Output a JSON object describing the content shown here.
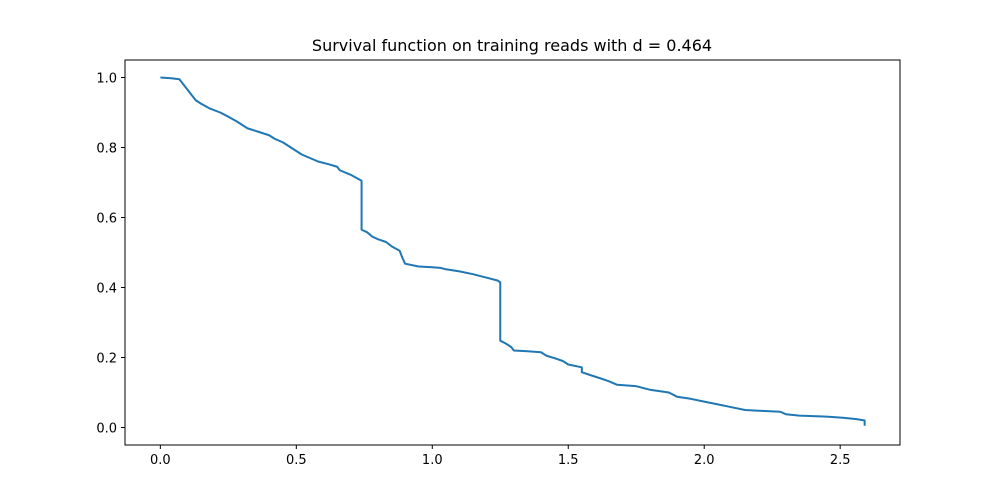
{
  "chart_data": {
    "type": "line",
    "title": "Survival function on training reads with d = 0.464",
    "xlabel": "",
    "ylabel": "",
    "xlim": [
      -0.13,
      2.72
    ],
    "ylim": [
      -0.05,
      1.05
    ],
    "grid": false,
    "x_ticks": [
      0.0,
      0.5,
      1.0,
      1.5,
      2.0,
      2.5
    ],
    "x_tick_labels": [
      "0.0",
      "0.5",
      "1.0",
      "1.5",
      "2.0",
      "2.5"
    ],
    "y_ticks": [
      0.0,
      0.2,
      0.4,
      0.6,
      0.8,
      1.0
    ],
    "y_tick_labels": [
      "0.0",
      "0.2",
      "0.4",
      "0.6",
      "0.8",
      "1.0"
    ],
    "series": [
      {
        "color": "#1f77b4",
        "x": [
          0.0,
          0.02,
          0.04,
          0.07,
          0.09,
          0.11,
          0.13,
          0.15,
          0.18,
          0.22,
          0.25,
          0.28,
          0.3,
          0.32,
          0.36,
          0.4,
          0.42,
          0.45,
          0.47,
          0.5,
          0.52,
          0.55,
          0.58,
          0.62,
          0.65,
          0.66,
          0.7,
          0.74,
          0.74,
          0.76,
          0.78,
          0.8,
          0.83,
          0.85,
          0.88,
          0.89,
          0.9,
          0.95,
          1.0,
          1.03,
          1.05,
          1.1,
          1.15,
          1.18,
          1.2,
          1.24,
          1.25,
          1.25,
          1.27,
          1.29,
          1.3,
          1.35,
          1.4,
          1.42,
          1.45,
          1.48,
          1.5,
          1.55,
          1.55,
          1.58,
          1.62,
          1.65,
          1.68,
          1.75,
          1.78,
          1.8,
          1.87,
          1.9,
          1.95,
          2.0,
          2.05,
          2.1,
          2.15,
          2.2,
          2.28,
          2.3,
          2.35,
          2.45,
          2.51,
          2.56,
          2.59,
          2.59
        ],
        "y": [
          1.0,
          0.999,
          0.998,
          0.995,
          0.975,
          0.955,
          0.935,
          0.925,
          0.912,
          0.9,
          0.888,
          0.875,
          0.865,
          0.855,
          0.845,
          0.835,
          0.825,
          0.815,
          0.805,
          0.79,
          0.78,
          0.77,
          0.76,
          0.752,
          0.745,
          0.735,
          0.722,
          0.705,
          0.565,
          0.558,
          0.545,
          0.538,
          0.53,
          0.518,
          0.505,
          0.485,
          0.468,
          0.46,
          0.458,
          0.456,
          0.452,
          0.446,
          0.438,
          0.432,
          0.428,
          0.42,
          0.415,
          0.248,
          0.24,
          0.23,
          0.22,
          0.218,
          0.215,
          0.205,
          0.198,
          0.19,
          0.18,
          0.172,
          0.158,
          0.15,
          0.14,
          0.132,
          0.122,
          0.118,
          0.112,
          0.108,
          0.1,
          0.088,
          0.082,
          0.074,
          0.066,
          0.058,
          0.05,
          0.048,
          0.045,
          0.038,
          0.034,
          0.031,
          0.028,
          0.024,
          0.02,
          0.005
        ]
      }
    ]
  }
}
